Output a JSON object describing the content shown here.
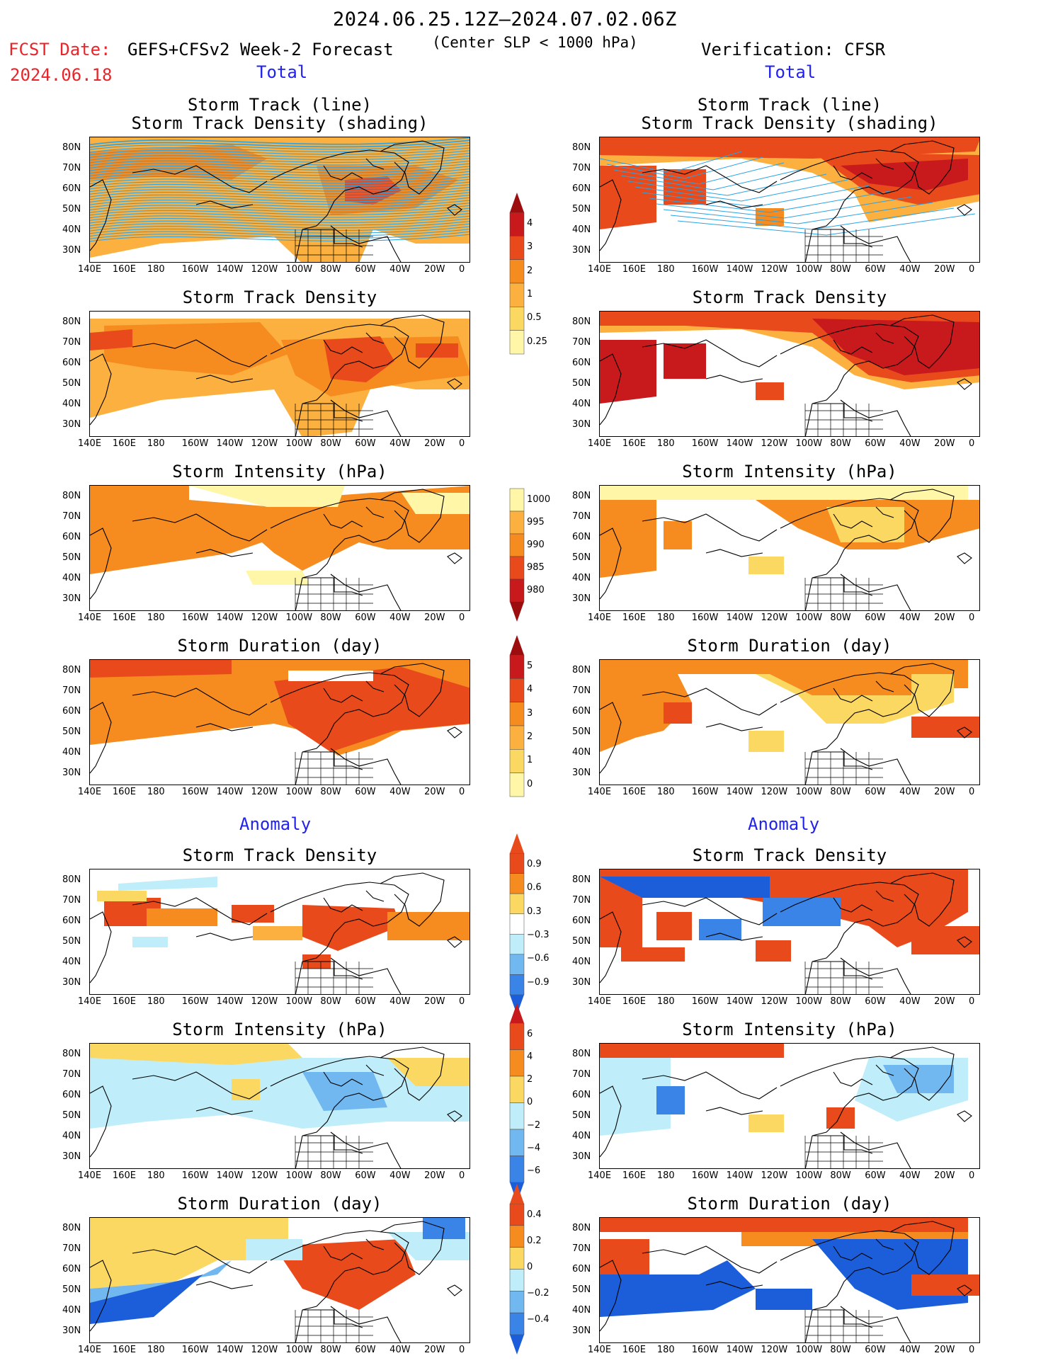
{
  "header": {
    "date_range": "2024.06.25.12Z–2024.07.02.06Z",
    "fcst_date_label": "FCST Date:",
    "forecast_model": "GEFS+CFSv2 Week-2 Forecast",
    "criterion": "(Center SLP < 1000 hPa)",
    "verification": "Verification: CFSR",
    "fcst_date": "2024.06.18"
  },
  "sections": {
    "total_left": "Total",
    "total_right": "Total",
    "anomaly_left": "Anomaly",
    "anomaly_right": "Anomaly"
  },
  "axes": {
    "lon_labels": [
      "140E",
      "160E",
      "180",
      "160W",
      "140W",
      "120W",
      "100W",
      "80W",
      "60W",
      "40W",
      "20W",
      "0"
    ],
    "lat_labels": [
      "80N",
      "70N",
      "60N",
      "50N",
      "40N",
      "30N"
    ]
  },
  "panels": {
    "left": [
      {
        "title1": "Storm Track (line)",
        "title2": "Storm Track Density (shading)"
      },
      {
        "title1": "Storm Track Density"
      },
      {
        "title1": "Storm Intensity (hPa)"
      },
      {
        "title1": "Storm Duration (day)"
      },
      {
        "title1": "Storm Track Density"
      },
      {
        "title1": "Storm Intensity (hPa)"
      },
      {
        "title1": "Storm Duration (day)"
      }
    ],
    "right": [
      {
        "title1": "Storm Track (line)",
        "title2": "Storm Track Density (shading)"
      },
      {
        "title1": "Storm Track Density"
      },
      {
        "title1": "Storm Intensity (hPa)"
      },
      {
        "title1": "Storm Duration (day)"
      },
      {
        "title1": "Storm Track Density"
      },
      {
        "title1": "Storm Intensity (hPa)"
      },
      {
        "title1": "Storm Duration (day)"
      }
    ]
  },
  "colorbars": {
    "density_total": [
      "4",
      "3",
      "2",
      "1",
      "0.5",
      "0.25"
    ],
    "intensity_total": [
      "1000",
      "995",
      "990",
      "985",
      "980"
    ],
    "duration_total": [
      "5",
      "4",
      "3",
      "2",
      "1",
      "0"
    ],
    "density_anom": [
      "0.9",
      "0.6",
      "0.3",
      "−0.3",
      "−0.6",
      "−0.9"
    ],
    "intensity_anom": [
      "6",
      "4",
      "2",
      "0",
      "−2",
      "−4",
      "−6"
    ],
    "duration_anom": [
      "0.4",
      "0.2",
      "0",
      "−0.2",
      "−0.4"
    ]
  },
  "colors": {
    "yellow_light": "#fff6a8",
    "yellow": "#fbd862",
    "orange_light": "#fbb040",
    "orange": "#f68b1f",
    "red_orange": "#e84a1b",
    "red": "#c8191d",
    "dark_red": "#9c0d0d",
    "blue_light": "#bfeefa",
    "blue_mid": "#72b8f0",
    "blue": "#3a84e8",
    "blue_dark": "#1c5ed9",
    "track_line": "#2ba3e5"
  }
}
